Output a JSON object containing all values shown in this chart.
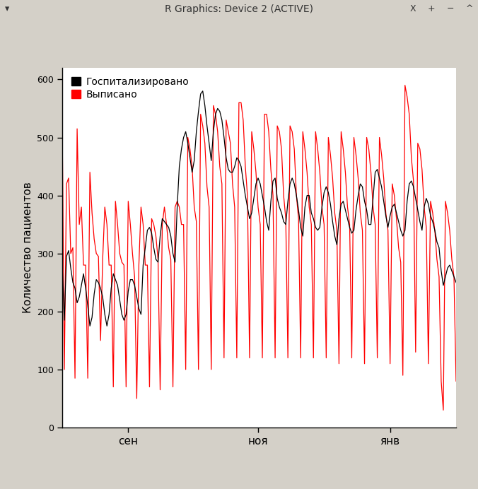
{
  "title": "R Graphics: Device 2 (ACTIVE)",
  "ylabel": "Количество пациентов",
  "legend_labels": [
    "Госпитализировано",
    "Выписано"
  ],
  "line_colors": [
    "#000000",
    "#ff0000"
  ],
  "ylim": [
    0,
    620
  ],
  "yticks": [
    0,
    100,
    200,
    300,
    400,
    500,
    600
  ],
  "xtick_labels": [
    "сен",
    "ноя",
    "янв"
  ],
  "xtick_pos": [
    31,
    92,
    154
  ],
  "window_bg": "#d4d0c8",
  "title_bar_bg": "#c8c4bc",
  "plot_bg": "#ffffff",
  "hosp": [
    280,
    185,
    295,
    305,
    275,
    250,
    240,
    215,
    225,
    245,
    265,
    240,
    210,
    175,
    190,
    230,
    255,
    250,
    240,
    225,
    195,
    175,
    195,
    240,
    265,
    255,
    245,
    220,
    195,
    185,
    195,
    235,
    255,
    255,
    245,
    225,
    205,
    195,
    280,
    310,
    340,
    345,
    335,
    310,
    290,
    285,
    330,
    360,
    355,
    350,
    345,
    330,
    300,
    285,
    380,
    450,
    480,
    500,
    510,
    490,
    465,
    440,
    460,
    510,
    545,
    575,
    580,
    555,
    520,
    490,
    460,
    510,
    540,
    550,
    545,
    530,
    500,
    465,
    445,
    440,
    440,
    450,
    465,
    460,
    450,
    425,
    400,
    380,
    360,
    370,
    395,
    420,
    430,
    420,
    400,
    380,
    355,
    340,
    390,
    425,
    430,
    395,
    380,
    370,
    355,
    350,
    390,
    420,
    430,
    420,
    400,
    375,
    345,
    330,
    380,
    400,
    400,
    370,
    360,
    345,
    340,
    345,
    380,
    405,
    415,
    405,
    385,
    355,
    330,
    315,
    360,
    385,
    390,
    375,
    360,
    345,
    335,
    340,
    375,
    400,
    420,
    415,
    390,
    375,
    350,
    350,
    395,
    440,
    445,
    430,
    415,
    390,
    365,
    345,
    365,
    380,
    385,
    370,
    355,
    340,
    330,
    340,
    390,
    420,
    425,
    415,
    395,
    375,
    355,
    340,
    380,
    395,
    385,
    365,
    355,
    340,
    320,
    310,
    270,
    245,
    260,
    275,
    280,
    270,
    260,
    250
  ],
  "disch": [
    520,
    100,
    420,
    430,
    300,
    310,
    85,
    515,
    350,
    380,
    280,
    280,
    85,
    440,
    370,
    325,
    300,
    295,
    150,
    290,
    380,
    350,
    280,
    280,
    70,
    390,
    350,
    300,
    285,
    280,
    70,
    390,
    350,
    300,
    260,
    50,
    280,
    380,
    350,
    280,
    280,
    70,
    360,
    350,
    330,
    290,
    65,
    350,
    380,
    350,
    310,
    290,
    70,
    380,
    390,
    380,
    350,
    350,
    100,
    500,
    480,
    450,
    380,
    355,
    100,
    540,
    520,
    490,
    415,
    380,
    100,
    555,
    540,
    510,
    450,
    420,
    120,
    530,
    510,
    490,
    420,
    380,
    120,
    560,
    560,
    530,
    450,
    400,
    120,
    510,
    480,
    440,
    380,
    350,
    120,
    540,
    540,
    510,
    445,
    400,
    120,
    520,
    510,
    480,
    400,
    360,
    120,
    520,
    510,
    480,
    400,
    360,
    120,
    510,
    480,
    440,
    380,
    350,
    120,
    510,
    480,
    440,
    380,
    350,
    120,
    500,
    470,
    430,
    370,
    340,
    110,
    510,
    480,
    440,
    380,
    350,
    120,
    500,
    470,
    430,
    370,
    340,
    110,
    500,
    480,
    440,
    380,
    350,
    120,
    500,
    470,
    430,
    370,
    340,
    110,
    420,
    400,
    360,
    310,
    285,
    90,
    590,
    570,
    540,
    465,
    425,
    130,
    490,
    480,
    445,
    380,
    345,
    110,
    390,
    370,
    340,
    290,
    260,
    80,
    30,
    390,
    370,
    340,
    290,
    260,
    80
  ]
}
